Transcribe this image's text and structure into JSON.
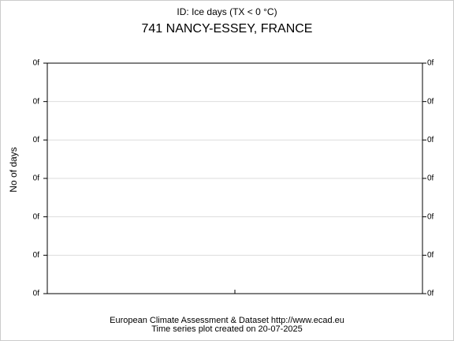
{
  "chart_data": {
    "type": "line",
    "subtitle": "ID: Ice days (TX < 0 °C)",
    "title": "741 NANCY-ESSEY, FRANCE",
    "ylabel": "No of days",
    "ytick_labels": [
      "0f",
      "0f",
      "0f",
      "0f",
      "0f",
      "0f",
      "0f"
    ],
    "series": [],
    "grid": true,
    "footer": [
      "European Climate Assessment & Dataset  http://www.ecad.eu",
      "Time series plot created on 20-07-2025"
    ]
  }
}
